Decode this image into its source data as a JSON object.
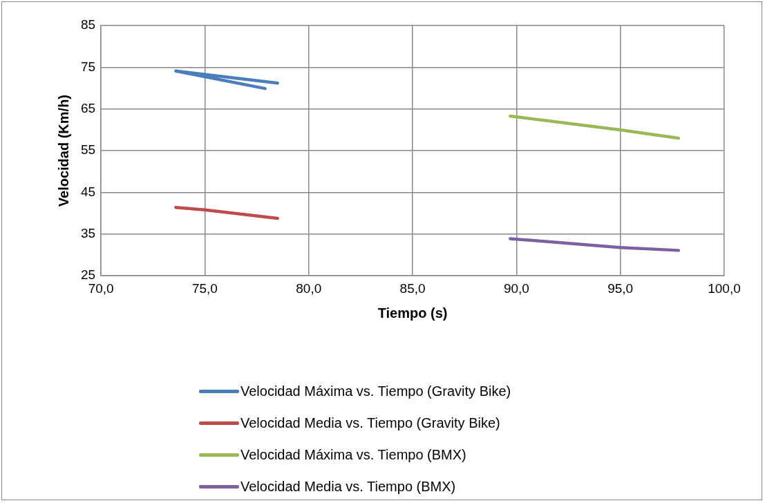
{
  "chart_data": {
    "type": "line",
    "xlabel": "Tiempo (s)",
    "ylabel": "Velocidad (Km/h)",
    "xlim": [
      70,
      100
    ],
    "xticks": [
      {
        "value": 70,
        "label": "70,0"
      },
      {
        "value": 75,
        "label": "75,0"
      },
      {
        "value": 80,
        "label": "80,0"
      },
      {
        "value": 85,
        "label": "85,0"
      },
      {
        "value": 90,
        "label": "90,0"
      },
      {
        "value": 95,
        "label": "95,0"
      },
      {
        "value": 100,
        "label": "100,0"
      }
    ],
    "ylim": [
      25,
      85
    ],
    "yticks": [
      25,
      35,
      45,
      55,
      65,
      75,
      85
    ],
    "grid": true,
    "legend": "bottom",
    "marker": "none",
    "line_style": "solid",
    "series": [
      {
        "name": "Velocidad Máxima vs. Tiempo (Gravity Bike)",
        "color": "#4a7ebb",
        "x": [
          77.9,
          73.6,
          78.5
        ],
        "values": [
          69.9,
          74.1,
          71.2
        ]
      },
      {
        "name": "Velocidad Media vs. Tiempo (Gravity Bike)",
        "color": "#be4b48",
        "x": [
          73.6,
          75.0,
          78.5
        ],
        "values": [
          41.4,
          40.8,
          38.8
        ]
      },
      {
        "name": "Velocidad Máxima vs. Tiempo (BMX)",
        "color": "#98b954",
        "x": [
          89.7,
          95.0,
          97.8
        ],
        "values": [
          63.3,
          60.0,
          58.0
        ]
      },
      {
        "name": "Velocidad Media vs. Tiempo (BMX)",
        "color": "#7d60a0",
        "x": [
          89.7,
          95.0,
          97.8
        ],
        "values": [
          33.9,
          31.8,
          31.1
        ]
      }
    ]
  }
}
